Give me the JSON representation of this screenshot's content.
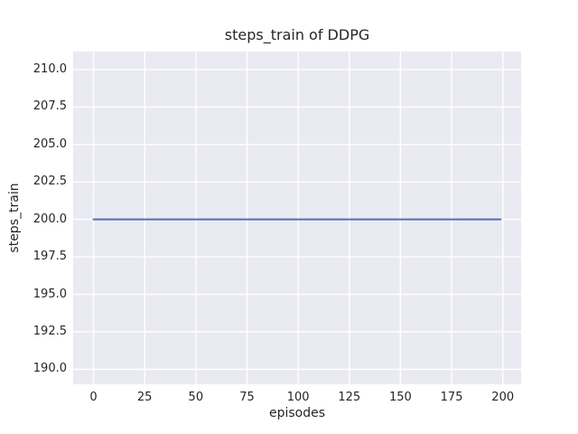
{
  "chart_data": {
    "type": "line",
    "title": "steps_train of DDPG",
    "xlabel": "episodes",
    "ylabel": "steps_train",
    "x_ticks": [
      0,
      25,
      50,
      75,
      100,
      125,
      150,
      175,
      200
    ],
    "x_tick_labels": [
      "0",
      "25",
      "50",
      "75",
      "100",
      "125",
      "150",
      "175",
      "200"
    ],
    "y_ticks": [
      190.0,
      192.5,
      195.0,
      197.5,
      200.0,
      202.5,
      205.0,
      207.5,
      210.0
    ],
    "y_tick_labels": [
      "190.0",
      "192.5",
      "195.0",
      "197.5",
      "200.0",
      "202.5",
      "205.0",
      "207.5",
      "210.0"
    ],
    "xlim": [
      -9.95,
      208.95
    ],
    "ylim": [
      189.0,
      211.2
    ],
    "grid": true,
    "legend": false,
    "series": [
      {
        "name": "steps_train",
        "color": "#4C72B0",
        "x": [
          0,
          199
        ],
        "y": [
          200,
          200
        ]
      }
    ],
    "colors": {
      "figure_bg": "#FFFFFF",
      "plot_bg": "#EAEAF2",
      "grid": "#FFFFFF",
      "text": "#262626"
    }
  }
}
